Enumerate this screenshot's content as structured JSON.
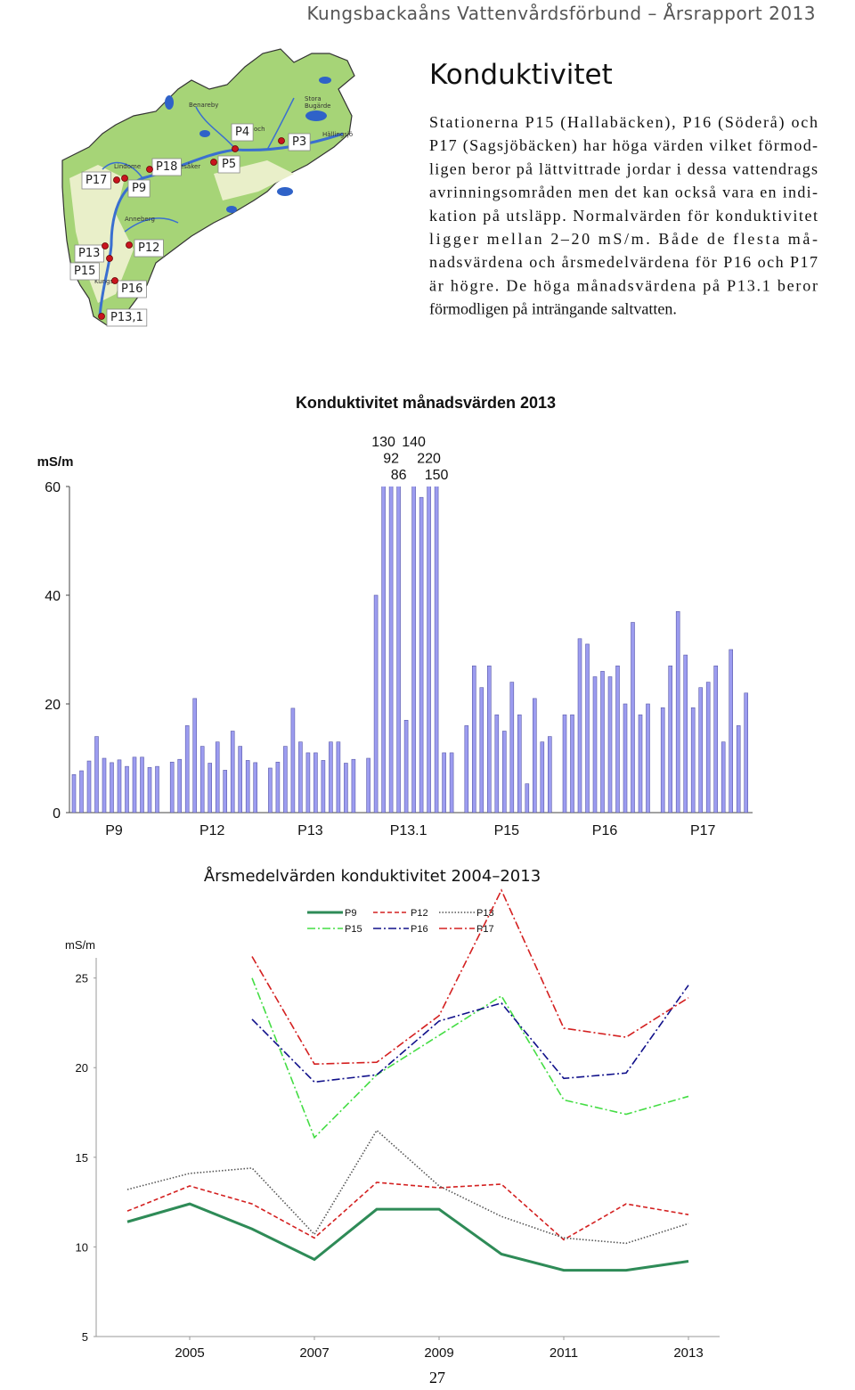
{
  "header": {
    "title": "Kungsbackaåns  Vattenvårdsförbund – Årsrapport 2013"
  },
  "heading": "Konduktivitet",
  "body_lines": [
    "Stationerna P15 (Hallabäcken), P16 (Söderå) och",
    "P17 (Sagsjöbäcken) har höga värden vilket förmod-",
    "ligen beror på lättvittrade jordar i dessa vattendrags",
    "avrinningsområden men det kan också vara en indi-",
    "kation på utsläpp. Normalvärden för konduktivitet",
    "ligger mellan 2–20 mS/m. Både de flesta må-",
    "nadsvärdena och årsmedelvärdena för P16 och P17",
    "är högre. De höga månadsvärdena på P13.1 beror",
    "förmodligen på inträngande saltvatten."
  ],
  "map": {
    "labels": [
      "P17",
      "P9",
      "P18",
      "P5",
      "P4",
      "P3",
      "P13",
      "P12",
      "P15",
      "P16",
      "P13,1"
    ],
    "place_names": [
      "Lindome",
      "Benareby",
      "Stora",
      "Bugärde",
      "Hällingsjö",
      "Anneberg",
      "Kungsb",
      "lesåker",
      "loch"
    ]
  },
  "chart_data": [
    {
      "type": "bar",
      "title": "Konduktivitet månadsvärden 2013",
      "y_label": "mS/m",
      "categories": [
        "P9",
        "P12",
        "P13",
        "P13.1",
        "P15",
        "P16",
        "P17"
      ],
      "values": [
        [
          7,
          7.7,
          9.5,
          14,
          10,
          9.2,
          9.7,
          8.5,
          10.2,
          10.2,
          8.3,
          8.5
        ],
        [
          9.3,
          9.8,
          16,
          21,
          12.2,
          9.1,
          13,
          7.8,
          15,
          12.2,
          9.6,
          9.2
        ],
        [
          8.2,
          9.3,
          12.2,
          19.2,
          13,
          11,
          11,
          9.6,
          13,
          13,
          9.1,
          9.8
        ],
        [
          10,
          40,
          130,
          92,
          86,
          17,
          140,
          58,
          220,
          150,
          11,
          11
        ],
        [
          16,
          27,
          23,
          27,
          18,
          15,
          24,
          18,
          5.3,
          21,
          13,
          14
        ],
        [
          18,
          18,
          32,
          31,
          25,
          26,
          25,
          27,
          20,
          35,
          18,
          20
        ],
        [
          19.3,
          27,
          37,
          29,
          19.3,
          23,
          24,
          27,
          13,
          30,
          16,
          22
        ]
      ],
      "color": "#9c9cf0",
      "ylim": [
        0,
        60
      ],
      "yticks": [
        0,
        20,
        40,
        60
      ],
      "grid": false
    },
    {
      "type": "line",
      "title": "Årsmedelvärden konduktivitet 2004–2013",
      "y_label": "mS/m",
      "x": [
        2004,
        2005,
        2006,
        2007,
        2008,
        2009,
        2010,
        2011,
        2012,
        2013
      ],
      "series": [
        {
          "name": "P9",
          "color": "#2e8b57",
          "dash": "solid",
          "values": [
            11.4,
            12.4,
            11.0,
            9.3,
            12.1,
            12.1,
            9.6,
            8.7,
            8.7,
            9.2
          ]
        },
        {
          "name": "P12",
          "color": "#d42020",
          "dash": "dashed",
          "values": [
            12.0,
            13.4,
            12.4,
            10.5,
            13.6,
            13.3,
            13.5,
            10.4,
            12.4,
            11.8
          ]
        },
        {
          "name": "P13",
          "color": "#555555",
          "dash": "dotted",
          "values": [
            13.2,
            14.1,
            14.4,
            10.7,
            16.5,
            13.4,
            11.7,
            10.5,
            10.2,
            11.3
          ]
        },
        {
          "name": "P15",
          "color": "#44dd44",
          "dash": "dashdot",
          "values": [
            null,
            null,
            25.0,
            16.1,
            19.6,
            21.8,
            24.0,
            18.2,
            17.4,
            18.4
          ]
        },
        {
          "name": "P16",
          "color": "#10108a",
          "dash": "dashdot",
          "values": [
            null,
            null,
            22.7,
            19.2,
            19.6,
            22.6,
            23.6,
            19.4,
            19.7,
            24.6
          ]
        },
        {
          "name": "P17",
          "color": "#d42020",
          "dash": "dashdot",
          "values": [
            null,
            null,
            26.2,
            20.2,
            20.3,
            22.9,
            29.9,
            22.2,
            21.7,
            23.9
          ]
        }
      ],
      "xlim": [
        2003.5,
        2013.5
      ],
      "xticks": [
        2005,
        2007,
        2009,
        2011,
        2013
      ],
      "ylim": [
        5,
        30.5
      ],
      "yticks": [
        5,
        10,
        15,
        20,
        25
      ],
      "legend": "top",
      "grid": false
    }
  ],
  "page_number": "27"
}
